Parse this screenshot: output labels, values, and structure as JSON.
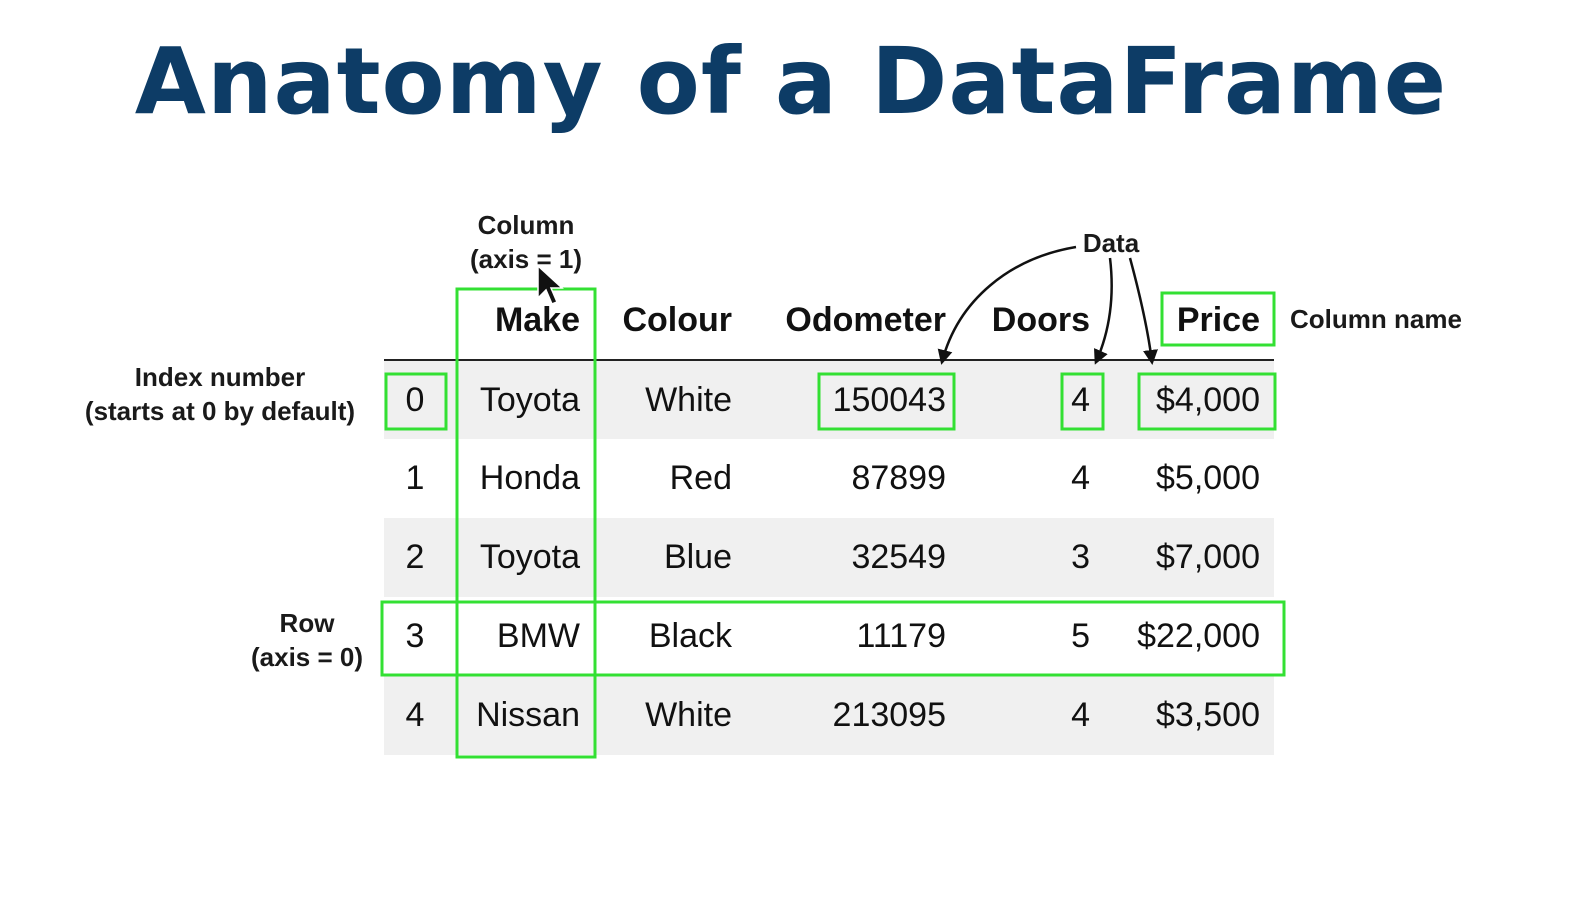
{
  "title": "Anatomy of a DataFrame",
  "annotations": {
    "column_line1": "Column",
    "column_line2": "(axis = 1)",
    "data": "Data",
    "column_name": "Column name",
    "index_line1": "Index number",
    "index_line2": "(starts at 0 by default)",
    "row_line1": "Row",
    "row_line2": "(axis = 0)"
  },
  "table": {
    "columns": [
      "Make",
      "Colour",
      "Odometer",
      "Doors",
      "Price"
    ],
    "rows": [
      {
        "index": "0",
        "make": "Toyota",
        "colour": "White",
        "odometer": "150043",
        "doors": "4",
        "price": "$4,000"
      },
      {
        "index": "1",
        "make": "Honda",
        "colour": "Red",
        "odometer": "87899",
        "doors": "4",
        "price": "$5,000"
      },
      {
        "index": "2",
        "make": "Toyota",
        "colour": "Blue",
        "odometer": "32549",
        "doors": "3",
        "price": "$7,000"
      },
      {
        "index": "3",
        "make": "BMW",
        "colour": "Black",
        "odometer": "11179",
        "doors": "5",
        "price": "$22,000"
      },
      {
        "index": "4",
        "make": "Nissan",
        "colour": "White",
        "odometer": "213095",
        "doors": "4",
        "price": "$3,500"
      }
    ]
  },
  "colors": {
    "title": "#0d3c66",
    "highlight": "#33e033",
    "row_stripe": "#f0f0f0"
  }
}
